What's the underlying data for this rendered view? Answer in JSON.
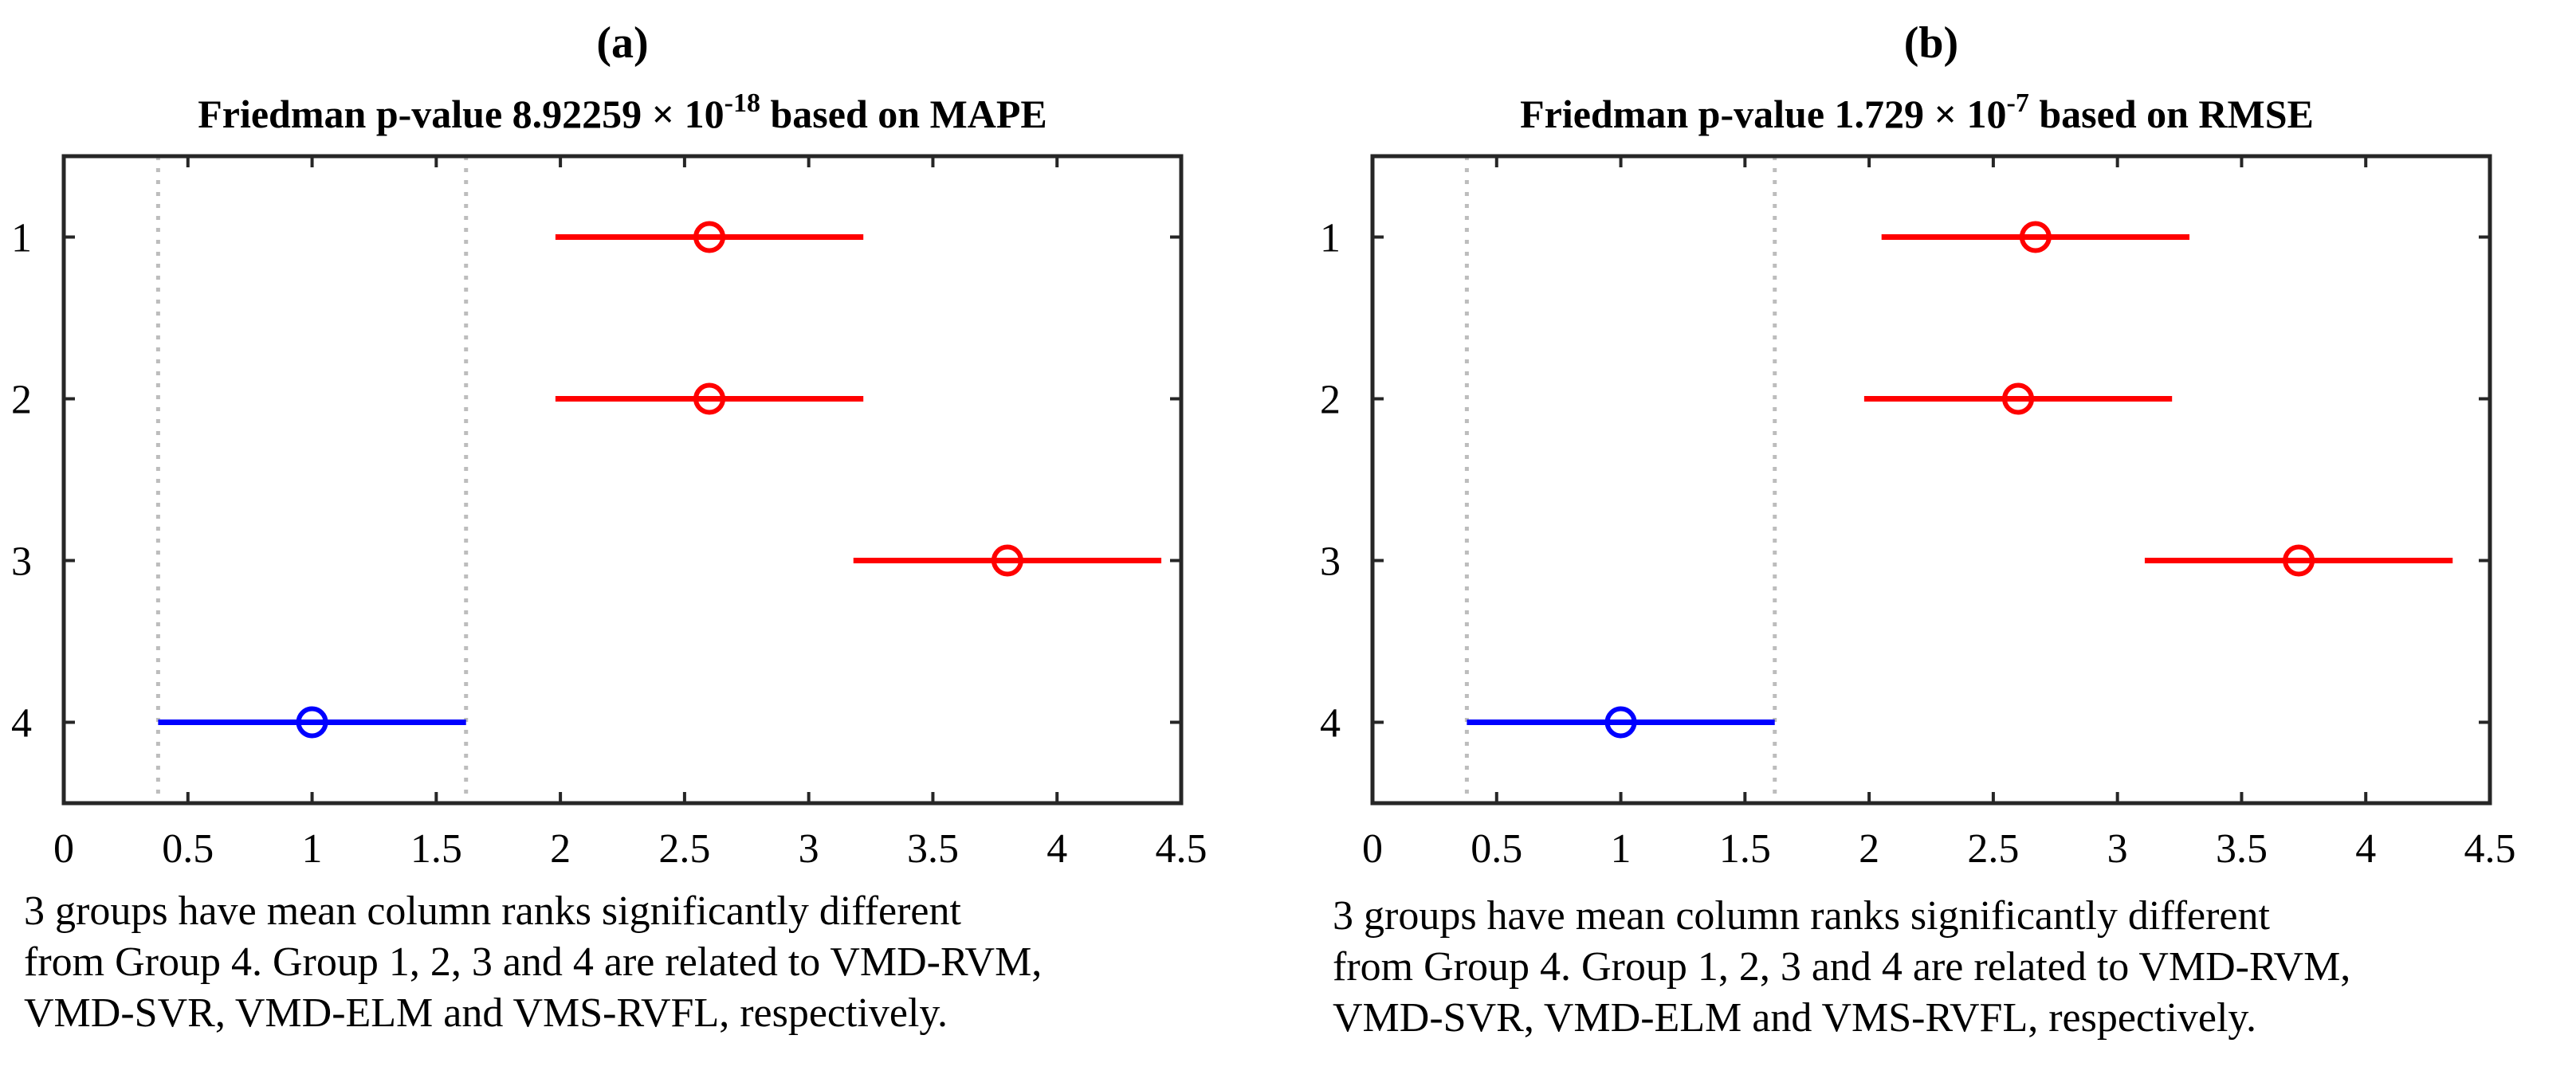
{
  "chart_data": [
    {
      "panel_label": "(a)",
      "title_prefix": "Friedman p-value 8.92259 × 10",
      "title_exponent": "-18",
      "title_suffix": " based on MAPE",
      "type": "scatter",
      "xlim": [
        0,
        4.5
      ],
      "ylim": [
        0.5,
        4.5
      ],
      "y_reversed": true,
      "x_ticks": [
        "0",
        "0.5",
        "1",
        "1.5",
        "2",
        "2.5",
        "3",
        "3.5",
        "4",
        "4.5"
      ],
      "y_ticks": [
        "1",
        "2",
        "3",
        "4"
      ],
      "reference_lines": [
        0.38,
        1.62
      ],
      "groups": [
        {
          "group": 1,
          "mean_rank": 2.6,
          "ci": [
            1.98,
            3.22
          ],
          "color": "#ff0000"
        },
        {
          "group": 2,
          "mean_rank": 2.6,
          "ci": [
            1.98,
            3.22
          ],
          "color": "#ff0000"
        },
        {
          "group": 3,
          "mean_rank": 3.8,
          "ci": [
            3.18,
            4.42
          ],
          "color": "#ff0000"
        },
        {
          "group": 4,
          "mean_rank": 1.0,
          "ci": [
            0.38,
            1.62
          ],
          "color": "#0000ff"
        }
      ],
      "caption": [
        "3 groups have mean column ranks significantly different",
        "from Group 4. Group 1, 2, 3 and 4 are related to VMD-RVM,",
        "VMD-SVR, VMD-ELM and VMS-RVFL, respectively."
      ]
    },
    {
      "panel_label": "(b)",
      "title_prefix": "Friedman p-value 1.729 × 10",
      "title_exponent": "-7",
      "title_suffix": " based on RMSE",
      "type": "scatter",
      "xlim": [
        0,
        4.5
      ],
      "ylim": [
        0.5,
        4.5
      ],
      "y_reversed": true,
      "x_ticks": [
        "0",
        "0.5",
        "1",
        "1.5",
        "2",
        "2.5",
        "3",
        "3.5",
        "4",
        "4.5"
      ],
      "y_ticks": [
        "1",
        "2",
        "3",
        "4"
      ],
      "reference_lines": [
        0.38,
        1.62
      ],
      "groups": [
        {
          "group": 1,
          "mean_rank": 2.67,
          "ci": [
            2.05,
            3.29
          ],
          "color": "#ff0000"
        },
        {
          "group": 2,
          "mean_rank": 2.6,
          "ci": [
            1.98,
            3.22
          ],
          "color": "#ff0000"
        },
        {
          "group": 3,
          "mean_rank": 3.73,
          "ci": [
            3.11,
            4.35
          ],
          "color": "#ff0000"
        },
        {
          "group": 4,
          "mean_rank": 1.0,
          "ci": [
            0.38,
            1.62
          ],
          "color": "#0000ff"
        }
      ],
      "caption": [
        "3 groups have mean column ranks significantly different",
        "from Group 4. Group 1, 2, 3 and 4 are related to VMD-RVM,",
        "VMD-SVR, VMD-ELM and VMS-RVFL, respectively."
      ]
    }
  ]
}
